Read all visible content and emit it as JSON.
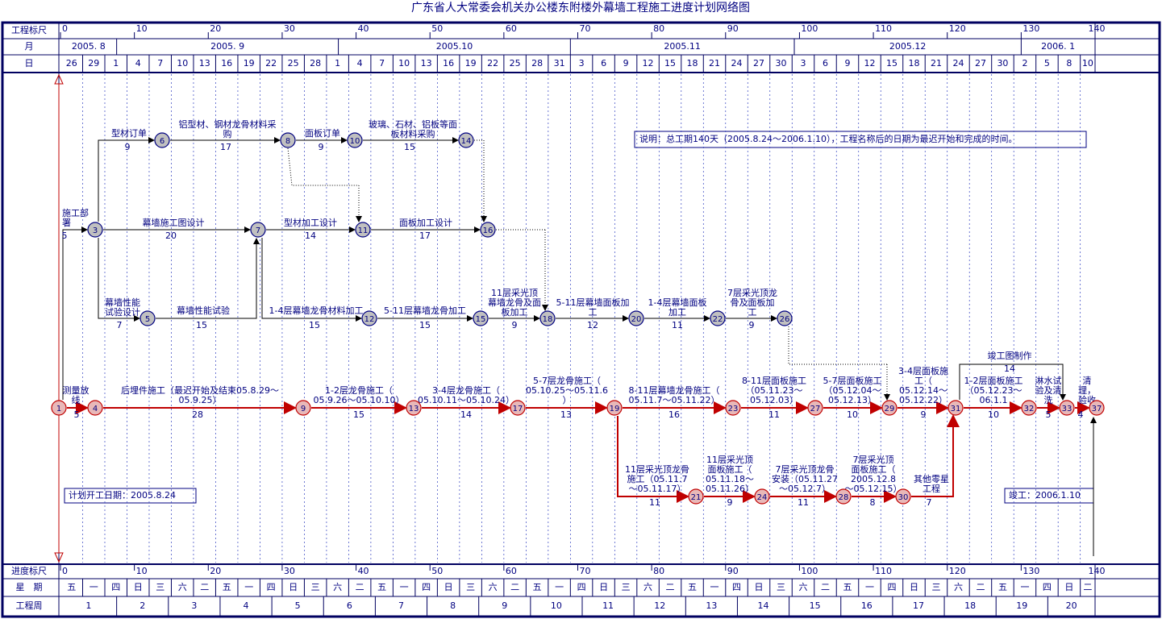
{
  "title": "广东省人大常委会机关办公楼东附楼外幕墙工程施工进度计划网络图",
  "ruler": {
    "top_label": "工程标尺",
    "bottom_label": "进度标尺",
    "ticks": [
      0,
      10,
      20,
      30,
      40,
      50,
      60,
      70,
      80,
      90,
      100,
      110,
      120,
      130,
      140
    ]
  },
  "header": {
    "month_label": "月",
    "months": [
      "2005. 8",
      "2005. 9",
      "2005.10",
      "2005.11",
      "2005.12",
      "2006. 1"
    ],
    "day_label": "日",
    "days": [
      "26",
      "29",
      "1",
      "4",
      "7",
      "10",
      "13",
      "16",
      "19",
      "22",
      "25",
      "28",
      "1",
      "4",
      "7",
      "10",
      "13",
      "16",
      "19",
      "22",
      "25",
      "28",
      "31",
      "3",
      "6",
      "9",
      "12",
      "15",
      "18",
      "21",
      "24",
      "27",
      "30",
      "3",
      "6",
      "9",
      "12",
      "15",
      "18",
      "21",
      "24",
      "27",
      "30",
      "2",
      "5",
      "8",
      "10"
    ]
  },
  "footer": {
    "weekday_label": "星　期",
    "weekdays": [
      "五",
      "一",
      "四",
      "日",
      "三",
      "六",
      "二",
      "五",
      "一",
      "四",
      "日",
      "三",
      "六",
      "二",
      "五",
      "一",
      "四",
      "日",
      "三",
      "六",
      "二",
      "五",
      "一",
      "四",
      "日",
      "三",
      "六",
      "二",
      "五",
      "一",
      "四",
      "日",
      "三",
      "六",
      "二",
      "五",
      "一",
      "四",
      "日",
      "三",
      "六",
      "二",
      "五",
      "一",
      "四",
      "日",
      "二"
    ],
    "week_label": "工程周",
    "weeks": [
      "1",
      "2",
      "3",
      "4",
      "5",
      "6",
      "7",
      "8",
      "9",
      "10",
      "11",
      "12",
      "13",
      "14",
      "15",
      "16",
      "17",
      "18",
      "19",
      "20"
    ]
  },
  "nodes": [
    "1",
    "3",
    "4",
    "5",
    "6",
    "7",
    "8",
    "9",
    "10",
    "11",
    "12",
    "13",
    "14",
    "15",
    "16",
    "17",
    "18",
    "19",
    "20",
    "21",
    "22",
    "23",
    "24",
    "26",
    "27",
    "28",
    "29",
    "30",
    "31",
    "32",
    "33",
    "37"
  ],
  "activities": [
    {
      "name": [
        "施工部",
        "署"
      ],
      "duration": 5
    },
    {
      "name": [
        "型材订单"
      ],
      "duration": 9
    },
    {
      "name": [
        "铝型材、钢材龙骨材料采",
        "购"
      ],
      "duration": 17
    },
    {
      "name": [
        "面板订单"
      ],
      "duration": 9
    },
    {
      "name": [
        "玻璃、石材、铝板等面",
        "板材料采购"
      ],
      "duration": 15
    },
    {
      "name": [
        "幕墙施工图设计"
      ],
      "duration": 20
    },
    {
      "name": [
        "型材加工设计"
      ],
      "duration": 14
    },
    {
      "name": [
        "面板加工设计"
      ],
      "duration": 17
    },
    {
      "name": [
        "幕墙性能",
        "试验设计"
      ],
      "duration": 7
    },
    {
      "name": [
        "幕墙性能试验"
      ],
      "duration": 15
    },
    {
      "name": [
        "1-4层幕墙龙骨材料加工"
      ],
      "duration": 15
    },
    {
      "name": [
        "5-11层幕墙龙骨加工"
      ],
      "duration": 15
    },
    {
      "name": [
        "11层采光顶",
        "幕墙龙骨及面",
        "板加工"
      ],
      "duration": 9
    },
    {
      "name": [
        "5-11层幕墙面板加",
        "工"
      ],
      "duration": 12
    },
    {
      "name": [
        "1-4层幕墙面板",
        "加工"
      ],
      "duration": 11
    },
    {
      "name": [
        "7层采光顶龙",
        "骨及面板加",
        "工"
      ],
      "duration": 9
    },
    {
      "name": [
        "测量放",
        "线"
      ],
      "duration": 5
    },
    {
      "name": [
        "后埋件施工（最迟开始及结束05.8.29～",
        "05.9.25）"
      ],
      "duration": 28
    },
    {
      "name": [
        "1-2层龙骨施工（",
        "05.9.26～05.10.10）"
      ],
      "duration": 15
    },
    {
      "name": [
        "3-4层龙骨施工（",
        "05.10.11～05.10.24）"
      ],
      "duration": 14
    },
    {
      "name": [
        "5-7层龙骨施工（",
        "05.10.25～05.11.6",
        "）"
      ],
      "duration": 13
    },
    {
      "name": [
        "8-11层幕墙龙骨施工（",
        "05.11.7～05.11.22）"
      ],
      "duration": 16
    },
    {
      "name": [
        "8-11层面板施工",
        "（05.11.23～",
        "05.12.03）"
      ],
      "duration": 11
    },
    {
      "name": [
        "5-7层面板施工",
        "（05.12.04～",
        "05.12.13）"
      ],
      "duration": 10
    },
    {
      "name": [
        "3-4层面板施",
        "工（",
        "05.12.14～",
        "05.12.22）"
      ],
      "duration": 9
    },
    {
      "name": [
        "1-2层面板施工",
        "（05.12.23～",
        "06.1.1"
      ],
      "duration": 10
    },
    {
      "name": [
        "淋水试",
        "验及清",
        "洗"
      ],
      "duration": 5
    },
    {
      "name": [
        "清",
        "理，",
        "验收"
      ],
      "duration": 4
    },
    {
      "name": [
        "竣工图制作"
      ],
      "duration": 14
    },
    {
      "name": [
        "11层采光顶龙骨",
        "施工（05.11.7",
        "～05.11.17）"
      ],
      "duration": 11
    },
    {
      "name": [
        "11层采光顶",
        "面板施工（",
        "05.11.18～",
        "05.11.26）"
      ],
      "duration": 9
    },
    {
      "name": [
        "7层采光顶龙骨",
        "安装（05.11.27",
        "～05.12.7）"
      ],
      "duration": 11
    },
    {
      "name": [
        "7层采光顶",
        "面板施工（",
        "2005.12.8",
        "～05.12.15）"
      ],
      "duration": 8
    },
    {
      "name": [
        "其他零星",
        "工程"
      ],
      "duration": 7
    }
  ],
  "notes": {
    "summary": "说明：总工期140天（2005.8.24～2006.1.10），工程名称后的日期为最迟开始和完成的时间。",
    "start": "计划开工日期：2005.8.24",
    "finish": "竣工：2006.1.10"
  }
}
